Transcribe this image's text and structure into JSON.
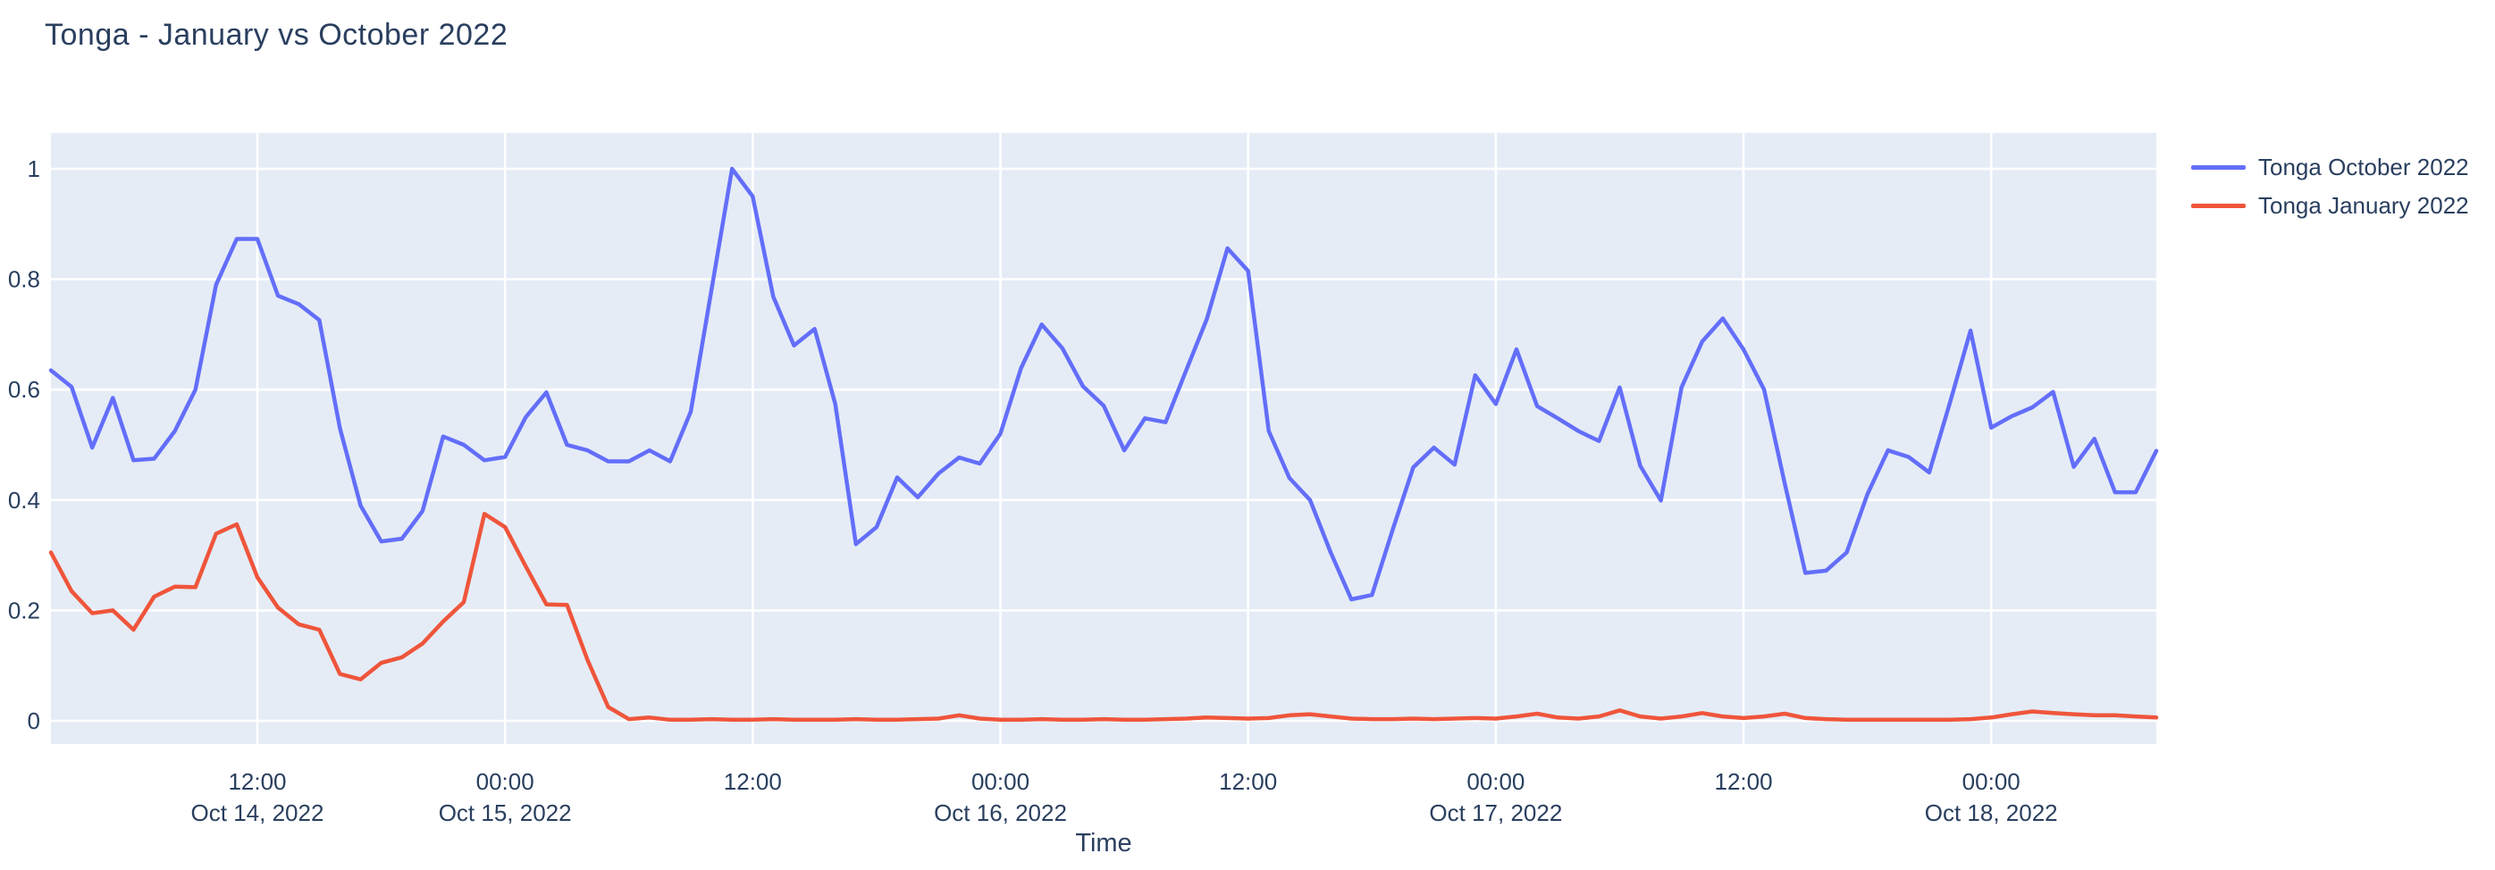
{
  "header": {
    "title": "Tonga - January vs October 2022"
  },
  "legend": {
    "items": [
      {
        "label": "Tonga October 2022",
        "color": "#636EFA"
      },
      {
        "label": "Tonga January 2022",
        "color": "#EF553B"
      }
    ]
  },
  "chart_data": {
    "type": "line",
    "title": "Tonga - January vs October 2022",
    "xlabel": "Time",
    "ylabel": "",
    "x_start": "2022-10-14 02:00",
    "x_step_hours": 1,
    "n_points": 103,
    "x_end": "2022-10-18 08:00",
    "ylim": [
      -0.042,
      1.065
    ],
    "grid": true,
    "legend_position": "right-top",
    "colors": {
      "plot_background": "#E5ECF6",
      "grid": "#FFFFFF",
      "text": "#2a3f5f",
      "page_background": "#FFFFFF"
    },
    "y_ticks": [
      {
        "value": 0,
        "label": "0"
      },
      {
        "value": 0.2,
        "label": "0.2"
      },
      {
        "value": 0.4,
        "label": "0.4"
      },
      {
        "value": 0.6,
        "label": "0.6"
      },
      {
        "value": 0.8,
        "label": "0.8"
      },
      {
        "value": 1,
        "label": "1"
      }
    ],
    "x_ticks": [
      {
        "hour_index": 10,
        "time": "12:00",
        "date": "Oct 14, 2022"
      },
      {
        "hour_index": 22,
        "time": "00:00",
        "date": "Oct 15, 2022"
      },
      {
        "hour_index": 34,
        "time": "12:00",
        "date": ""
      },
      {
        "hour_index": 46,
        "time": "00:00",
        "date": "Oct 16, 2022"
      },
      {
        "hour_index": 58,
        "time": "12:00",
        "date": ""
      },
      {
        "hour_index": 70,
        "time": "00:00",
        "date": "Oct 17, 2022"
      },
      {
        "hour_index": 82,
        "time": "12:00",
        "date": ""
      },
      {
        "hour_index": 94,
        "time": "00:00",
        "date": "Oct 18, 2022"
      }
    ],
    "series": [
      {
        "name": "Tonga October 2022",
        "color": "#636EFA",
        "values": [
          0.635,
          0.605,
          0.495,
          0.585,
          0.472,
          0.475,
          0.525,
          0.6,
          0.79,
          0.873,
          0.873,
          0.77,
          0.755,
          0.726,
          0.53,
          0.39,
          0.325,
          0.33,
          0.38,
          0.515,
          0.5,
          0.472,
          0.478,
          0.55,
          0.595,
          0.5,
          0.49,
          0.47,
          0.47,
          0.49,
          0.47,
          0.56,
          0.78,
          1.0,
          0.95,
          0.768,
          0.68,
          0.71,
          0.574,
          0.32,
          0.351,
          0.441,
          0.405,
          0.448,
          0.477,
          0.466,
          0.52,
          0.639,
          0.718,
          0.675,
          0.606,
          0.571,
          0.49,
          0.548,
          0.541,
          0.635,
          0.728,
          0.856,
          0.815,
          0.525,
          0.44,
          0.4,
          0.305,
          0.22,
          0.228,
          0.346,
          0.459,
          0.495,
          0.464,
          0.626,
          0.574,
          0.673,
          0.57,
          0.548,
          0.525,
          0.507,
          0.604,
          0.462,
          0.399,
          0.604,
          0.687,
          0.729,
          0.673,
          0.6,
          0.43,
          0.268,
          0.272,
          0.305,
          0.41,
          0.49,
          0.478,
          0.45,
          0.576,
          0.707,
          0.531,
          0.552,
          0.568,
          0.596,
          0.46,
          0.511,
          0.414,
          0.414,
          0.489
        ]
      },
      {
        "name": "Tonga January 2022",
        "color": "#EF553B",
        "values": [
          0.305,
          0.235,
          0.195,
          0.2,
          0.165,
          0.225,
          0.243,
          0.242,
          0.339,
          0.356,
          0.26,
          0.205,
          0.175,
          0.165,
          0.085,
          0.075,
          0.105,
          0.115,
          0.14,
          0.18,
          0.215,
          0.375,
          0.351,
          0.28,
          0.211,
          0.21,
          0.11,
          0.025,
          0.003,
          0.006,
          0.002,
          0.002,
          0.003,
          0.002,
          0.002,
          0.003,
          0.002,
          0.002,
          0.002,
          0.003,
          0.002,
          0.002,
          0.003,
          0.004,
          0.01,
          0.004,
          0.002,
          0.002,
          0.003,
          0.002,
          0.002,
          0.003,
          0.002,
          0.002,
          0.003,
          0.004,
          0.006,
          0.005,
          0.004,
          0.005,
          0.01,
          0.012,
          0.008,
          0.004,
          0.003,
          0.003,
          0.004,
          0.003,
          0.004,
          0.005,
          0.004,
          0.008,
          0.013,
          0.006,
          0.004,
          0.008,
          0.019,
          0.008,
          0.004,
          0.008,
          0.014,
          0.008,
          0.005,
          0.008,
          0.013,
          0.005,
          0.003,
          0.002,
          0.002,
          0.002,
          0.002,
          0.002,
          0.002,
          0.003,
          0.006,
          0.012,
          0.017,
          0.014,
          0.012,
          0.01,
          0.01,
          0.008,
          0.006
        ]
      }
    ]
  }
}
